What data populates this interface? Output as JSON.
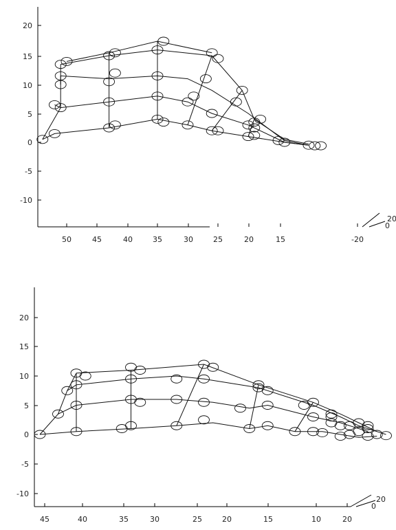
{
  "chart_data": [
    {
      "type": "scatter",
      "y_tick_labels": [
        "20",
        "15",
        "10",
        "5",
        "0",
        "-5",
        "-10"
      ],
      "x_tick_labels": [
        "50",
        "45",
        "40",
        "35",
        "30",
        "25",
        "20",
        "15",
        "-20"
      ],
      "depth_tick_labels": [
        "0",
        "20"
      ],
      "grid": false,
      "mesh_edges": [
        [
          [
            54,
            0.5
          ],
          [
            52,
            1.5
          ],
          [
            43,
            2.5
          ],
          [
            35,
            4
          ],
          [
            30,
            3
          ],
          [
            26,
            2
          ],
          [
            20,
            1
          ],
          [
            14,
            0
          ],
          [
            10,
            -0.5
          ]
        ],
        [
          [
            52,
            6.5
          ],
          [
            51,
            6
          ],
          [
            43,
            7
          ],
          [
            35,
            8
          ],
          [
            30,
            7
          ],
          [
            26,
            5
          ],
          [
            20,
            3
          ],
          [
            14,
            0
          ],
          [
            10,
            -0.5
          ]
        ],
        [
          [
            51,
            10
          ],
          [
            51,
            11.5
          ],
          [
            43,
            11
          ],
          [
            35,
            11.5
          ],
          [
            30,
            11
          ],
          [
            26,
            9
          ],
          [
            20,
            5
          ],
          [
            14,
            0.3
          ],
          [
            10,
            -0.5
          ]
        ],
        [
          [
            51,
            13.5
          ],
          [
            43,
            15
          ],
          [
            35,
            16
          ],
          [
            26,
            15
          ],
          [
            21,
            9
          ],
          [
            19,
            4
          ],
          [
            14,
            0.5
          ],
          [
            10,
            -0.3
          ]
        ],
        [
          [
            50,
            14
          ],
          [
            43,
            15.5
          ],
          [
            35,
            17.5
          ],
          [
            26,
            15.5
          ]
        ],
        [
          [
            54,
            0.5
          ],
          [
            51,
            6
          ],
          [
            51,
            10
          ],
          [
            51,
            13.5
          ]
        ],
        [
          [
            43,
            2.5
          ],
          [
            43,
            15.5
          ]
        ],
        [
          [
            35,
            4
          ],
          [
            35,
            17.5
          ]
        ],
        [
          [
            30,
            3
          ],
          [
            26,
            15
          ]
        ],
        [
          [
            26,
            2
          ],
          [
            21,
            9
          ]
        ],
        [
          [
            20,
            1
          ],
          [
            19,
            4
          ]
        ]
      ],
      "markers": [
        [
          54,
          0.5
        ],
        [
          52,
          1.5
        ],
        [
          43,
          2.5
        ],
        [
          42,
          3
        ],
        [
          35,
          4
        ],
        [
          34,
          3.5
        ],
        [
          30,
          3
        ],
        [
          26,
          2
        ],
        [
          25,
          2
        ],
        [
          20,
          1
        ],
        [
          19,
          1.2
        ],
        [
          15,
          0.3
        ],
        [
          14,
          0
        ],
        [
          10,
          -0.5
        ],
        [
          9,
          -0.6
        ],
        [
          8,
          -0.6
        ],
        [
          52,
          6.5
        ],
        [
          51,
          6
        ],
        [
          43,
          7
        ],
        [
          35,
          8
        ],
        [
          30,
          7
        ],
        [
          26,
          5
        ],
        [
          20,
          3
        ],
        [
          19,
          2.5
        ],
        [
          51,
          10
        ],
        [
          51,
          11.5
        ],
        [
          43,
          10.5
        ],
        [
          42,
          12
        ],
        [
          35,
          11.5
        ],
        [
          29,
          8
        ],
        [
          27,
          11
        ],
        [
          22,
          7
        ],
        [
          19,
          3.5
        ],
        [
          51,
          13.5
        ],
        [
          50,
          14
        ],
        [
          43,
          15
        ],
        [
          42,
          15.5
        ],
        [
          35,
          16
        ],
        [
          34,
          17.5
        ],
        [
          26,
          15.5
        ],
        [
          25,
          14.5
        ],
        [
          21,
          9
        ],
        [
          18,
          4
        ]
      ]
    },
    {
      "type": "scatter",
      "y_tick_labels": [
        "20",
        "15",
        "10",
        "5",
        "0",
        "-5",
        "-10"
      ],
      "x_tick_labels": [
        "45",
        "40",
        "35",
        "30",
        "25",
        "20",
        "15",
        "10",
        "20"
      ],
      "depth_tick_labels": [
        "0",
        "20"
      ],
      "grid": false,
      "mesh_edges": [
        [
          [
            45,
            0
          ],
          [
            41,
            0.5
          ],
          [
            35,
            1
          ],
          [
            30,
            1.5
          ],
          [
            26,
            2
          ],
          [
            22,
            1
          ],
          [
            20,
            1.5
          ],
          [
            17,
            0.5
          ],
          [
            14,
            0.5
          ],
          [
            12,
            0
          ],
          [
            10,
            -0.5
          ],
          [
            8,
            -0.3
          ]
        ],
        [
          [
            43,
            3.5
          ],
          [
            41,
            5
          ],
          [
            35,
            6
          ],
          [
            30,
            6
          ],
          [
            26,
            5.5
          ],
          [
            22,
            4.5
          ],
          [
            20,
            5
          ],
          [
            15,
            3
          ],
          [
            12,
            2
          ],
          [
            9,
            0.5
          ]
        ],
        [
          [
            42,
            7.5
          ],
          [
            41,
            8.5
          ],
          [
            35,
            9.5
          ],
          [
            30,
            10
          ],
          [
            27,
            9.5
          ],
          [
            21,
            8
          ],
          [
            15,
            5
          ],
          [
            12,
            3
          ],
          [
            10,
            1.5
          ],
          [
            8,
            0.5
          ]
        ],
        [
          [
            41,
            10.5
          ],
          [
            35,
            11
          ],
          [
            27,
            12
          ],
          [
            21,
            8.5
          ],
          [
            15,
            5.5
          ],
          [
            12,
            3.5
          ],
          [
            10,
            2
          ],
          [
            8,
            0.5
          ],
          [
            7,
            0
          ]
        ],
        [
          [
            45,
            0
          ],
          [
            43,
            3.5
          ],
          [
            42,
            7.5
          ],
          [
            41,
            10.5
          ]
        ],
        [
          [
            41,
            0.5
          ],
          [
            41,
            10.5
          ]
        ],
        [
          [
            35,
            1
          ],
          [
            35,
            11
          ]
        ],
        [
          [
            30,
            1.5
          ],
          [
            27,
            12
          ]
        ],
        [
          [
            22,
            1
          ],
          [
            21,
            8.5
          ]
        ],
        [
          [
            17,
            0.5
          ],
          [
            15,
            5.5
          ]
        ]
      ],
      "markers": [
        [
          45,
          0
        ],
        [
          41,
          0.5
        ],
        [
          36,
          1
        ],
        [
          35,
          1.5
        ],
        [
          30,
          1.5
        ],
        [
          27,
          2.5
        ],
        [
          22,
          1
        ],
        [
          20,
          1.5
        ],
        [
          17,
          0.5
        ],
        [
          15,
          0.5
        ],
        [
          14,
          0.3
        ],
        [
          12,
          -0.3
        ],
        [
          11,
          0
        ],
        [
          9,
          -0.3
        ],
        [
          8,
          0
        ],
        [
          7,
          -0.2
        ],
        [
          43,
          3.5
        ],
        [
          41,
          5
        ],
        [
          35,
          6
        ],
        [
          34,
          5.5
        ],
        [
          30,
          6
        ],
        [
          27,
          5.5
        ],
        [
          23,
          4.5
        ],
        [
          20,
          5
        ],
        [
          15,
          3
        ],
        [
          13,
          2
        ],
        [
          12,
          1.5
        ],
        [
          10,
          0.5
        ],
        [
          42,
          7.5
        ],
        [
          41,
          8.5
        ],
        [
          35,
          9.5
        ],
        [
          30,
          9.5
        ],
        [
          27,
          9.5
        ],
        [
          21,
          8
        ],
        [
          20,
          7.5
        ],
        [
          16,
          5
        ],
        [
          13,
          3
        ],
        [
          11,
          1.5
        ],
        [
          9,
          1
        ],
        [
          41,
          10.5
        ],
        [
          40,
          10
        ],
        [
          35,
          11.5
        ],
        [
          34,
          11
        ],
        [
          27,
          12
        ],
        [
          26,
          11.5
        ],
        [
          21,
          8.5
        ],
        [
          15,
          5.5
        ],
        [
          13,
          3.5
        ],
        [
          10,
          2
        ],
        [
          9,
          1.5
        ]
      ]
    }
  ]
}
